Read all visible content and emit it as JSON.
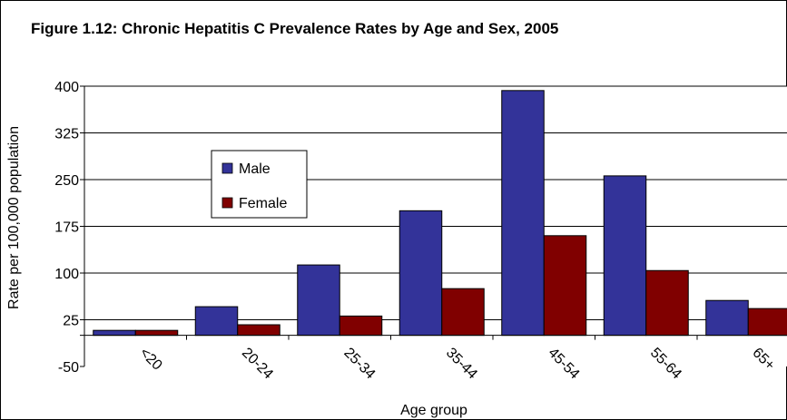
{
  "chart_data": {
    "type": "bar",
    "title": "Figure 1.12: Chronic Hepatitis C Prevalence Rates by Age and Sex, 2005",
    "xlabel": "Age group",
    "ylabel": "Rate per 100,000 population",
    "categories": [
      "<20",
      "20-24",
      "25-34",
      "35-44",
      "45-54",
      "55-64",
      "65+"
    ],
    "series": [
      {
        "name": "Male",
        "color": "#333399",
        "values": [
          8,
          46,
          113,
          200,
          393,
          256,
          56
        ]
      },
      {
        "name": "Female",
        "color": "#800000",
        "values": [
          8,
          17,
          31,
          75,
          160,
          104,
          43
        ]
      }
    ],
    "ylim": [
      -50,
      400
    ],
    "yticks": [
      -50,
      25,
      100,
      175,
      250,
      325,
      400
    ],
    "grid": true,
    "legend": "inside-left"
  }
}
